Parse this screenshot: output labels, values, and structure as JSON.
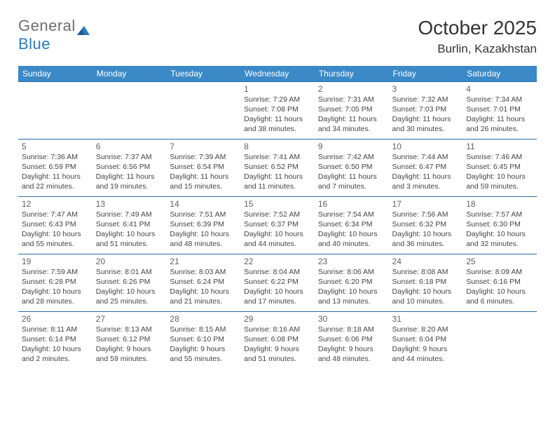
{
  "logo": {
    "word1": "General",
    "word2": "Blue"
  },
  "title": "October 2025",
  "location": "Burlin, Kazakhstan",
  "colors": {
    "header_bg": "#3b89c7",
    "header_fg": "#ffffff",
    "row_border": "#2a6aa0",
    "logo_gray": "#6d6d6d",
    "logo_blue": "#2a7bbf",
    "text_dark": "#333333",
    "daynum": "#616161",
    "info_text": "#444444"
  },
  "typography": {
    "title_size": 28,
    "location_size": 17,
    "header_size": 12,
    "daynum_size": 12,
    "info_size": 10.5
  },
  "days": [
    "Sunday",
    "Monday",
    "Tuesday",
    "Wednesday",
    "Thursday",
    "Friday",
    "Saturday"
  ],
  "weeks": [
    [
      null,
      null,
      null,
      {
        "n": "1",
        "sr": "7:29 AM",
        "ss": "7:08 PM",
        "dl": "11 hours and 38 minutes."
      },
      {
        "n": "2",
        "sr": "7:31 AM",
        "ss": "7:05 PM",
        "dl": "11 hours and 34 minutes."
      },
      {
        "n": "3",
        "sr": "7:32 AM",
        "ss": "7:03 PM",
        "dl": "11 hours and 30 minutes."
      },
      {
        "n": "4",
        "sr": "7:34 AM",
        "ss": "7:01 PM",
        "dl": "11 hours and 26 minutes."
      }
    ],
    [
      {
        "n": "5",
        "sr": "7:36 AM",
        "ss": "6:59 PM",
        "dl": "11 hours and 22 minutes."
      },
      {
        "n": "6",
        "sr": "7:37 AM",
        "ss": "6:56 PM",
        "dl": "11 hours and 19 minutes."
      },
      {
        "n": "7",
        "sr": "7:39 AM",
        "ss": "6:54 PM",
        "dl": "11 hours and 15 minutes."
      },
      {
        "n": "8",
        "sr": "7:41 AM",
        "ss": "6:52 PM",
        "dl": "11 hours and 11 minutes."
      },
      {
        "n": "9",
        "sr": "7:42 AM",
        "ss": "6:50 PM",
        "dl": "11 hours and 7 minutes."
      },
      {
        "n": "10",
        "sr": "7:44 AM",
        "ss": "6:47 PM",
        "dl": "11 hours and 3 minutes."
      },
      {
        "n": "11",
        "sr": "7:46 AM",
        "ss": "6:45 PM",
        "dl": "10 hours and 59 minutes."
      }
    ],
    [
      {
        "n": "12",
        "sr": "7:47 AM",
        "ss": "6:43 PM",
        "dl": "10 hours and 55 minutes."
      },
      {
        "n": "13",
        "sr": "7:49 AM",
        "ss": "6:41 PM",
        "dl": "10 hours and 51 minutes."
      },
      {
        "n": "14",
        "sr": "7:51 AM",
        "ss": "6:39 PM",
        "dl": "10 hours and 48 minutes."
      },
      {
        "n": "15",
        "sr": "7:52 AM",
        "ss": "6:37 PM",
        "dl": "10 hours and 44 minutes."
      },
      {
        "n": "16",
        "sr": "7:54 AM",
        "ss": "6:34 PM",
        "dl": "10 hours and 40 minutes."
      },
      {
        "n": "17",
        "sr": "7:56 AM",
        "ss": "6:32 PM",
        "dl": "10 hours and 36 minutes."
      },
      {
        "n": "18",
        "sr": "7:57 AM",
        "ss": "6:30 PM",
        "dl": "10 hours and 32 minutes."
      }
    ],
    [
      {
        "n": "19",
        "sr": "7:59 AM",
        "ss": "6:28 PM",
        "dl": "10 hours and 28 minutes."
      },
      {
        "n": "20",
        "sr": "8:01 AM",
        "ss": "6:26 PM",
        "dl": "10 hours and 25 minutes."
      },
      {
        "n": "21",
        "sr": "8:03 AM",
        "ss": "6:24 PM",
        "dl": "10 hours and 21 minutes."
      },
      {
        "n": "22",
        "sr": "8:04 AM",
        "ss": "6:22 PM",
        "dl": "10 hours and 17 minutes."
      },
      {
        "n": "23",
        "sr": "8:06 AM",
        "ss": "6:20 PM",
        "dl": "10 hours and 13 minutes."
      },
      {
        "n": "24",
        "sr": "8:08 AM",
        "ss": "6:18 PM",
        "dl": "10 hours and 10 minutes."
      },
      {
        "n": "25",
        "sr": "8:09 AM",
        "ss": "6:16 PM",
        "dl": "10 hours and 6 minutes."
      }
    ],
    [
      {
        "n": "26",
        "sr": "8:11 AM",
        "ss": "6:14 PM",
        "dl": "10 hours and 2 minutes."
      },
      {
        "n": "27",
        "sr": "8:13 AM",
        "ss": "6:12 PM",
        "dl": "9 hours and 59 minutes."
      },
      {
        "n": "28",
        "sr": "8:15 AM",
        "ss": "6:10 PM",
        "dl": "9 hours and 55 minutes."
      },
      {
        "n": "29",
        "sr": "8:16 AM",
        "ss": "6:08 PM",
        "dl": "9 hours and 51 minutes."
      },
      {
        "n": "30",
        "sr": "8:18 AM",
        "ss": "6:06 PM",
        "dl": "9 hours and 48 minutes."
      },
      {
        "n": "31",
        "sr": "8:20 AM",
        "ss": "6:04 PM",
        "dl": "9 hours and 44 minutes."
      },
      null
    ]
  ],
  "labels": {
    "sunrise": "Sunrise:",
    "sunset": "Sunset:",
    "daylight": "Daylight:"
  }
}
